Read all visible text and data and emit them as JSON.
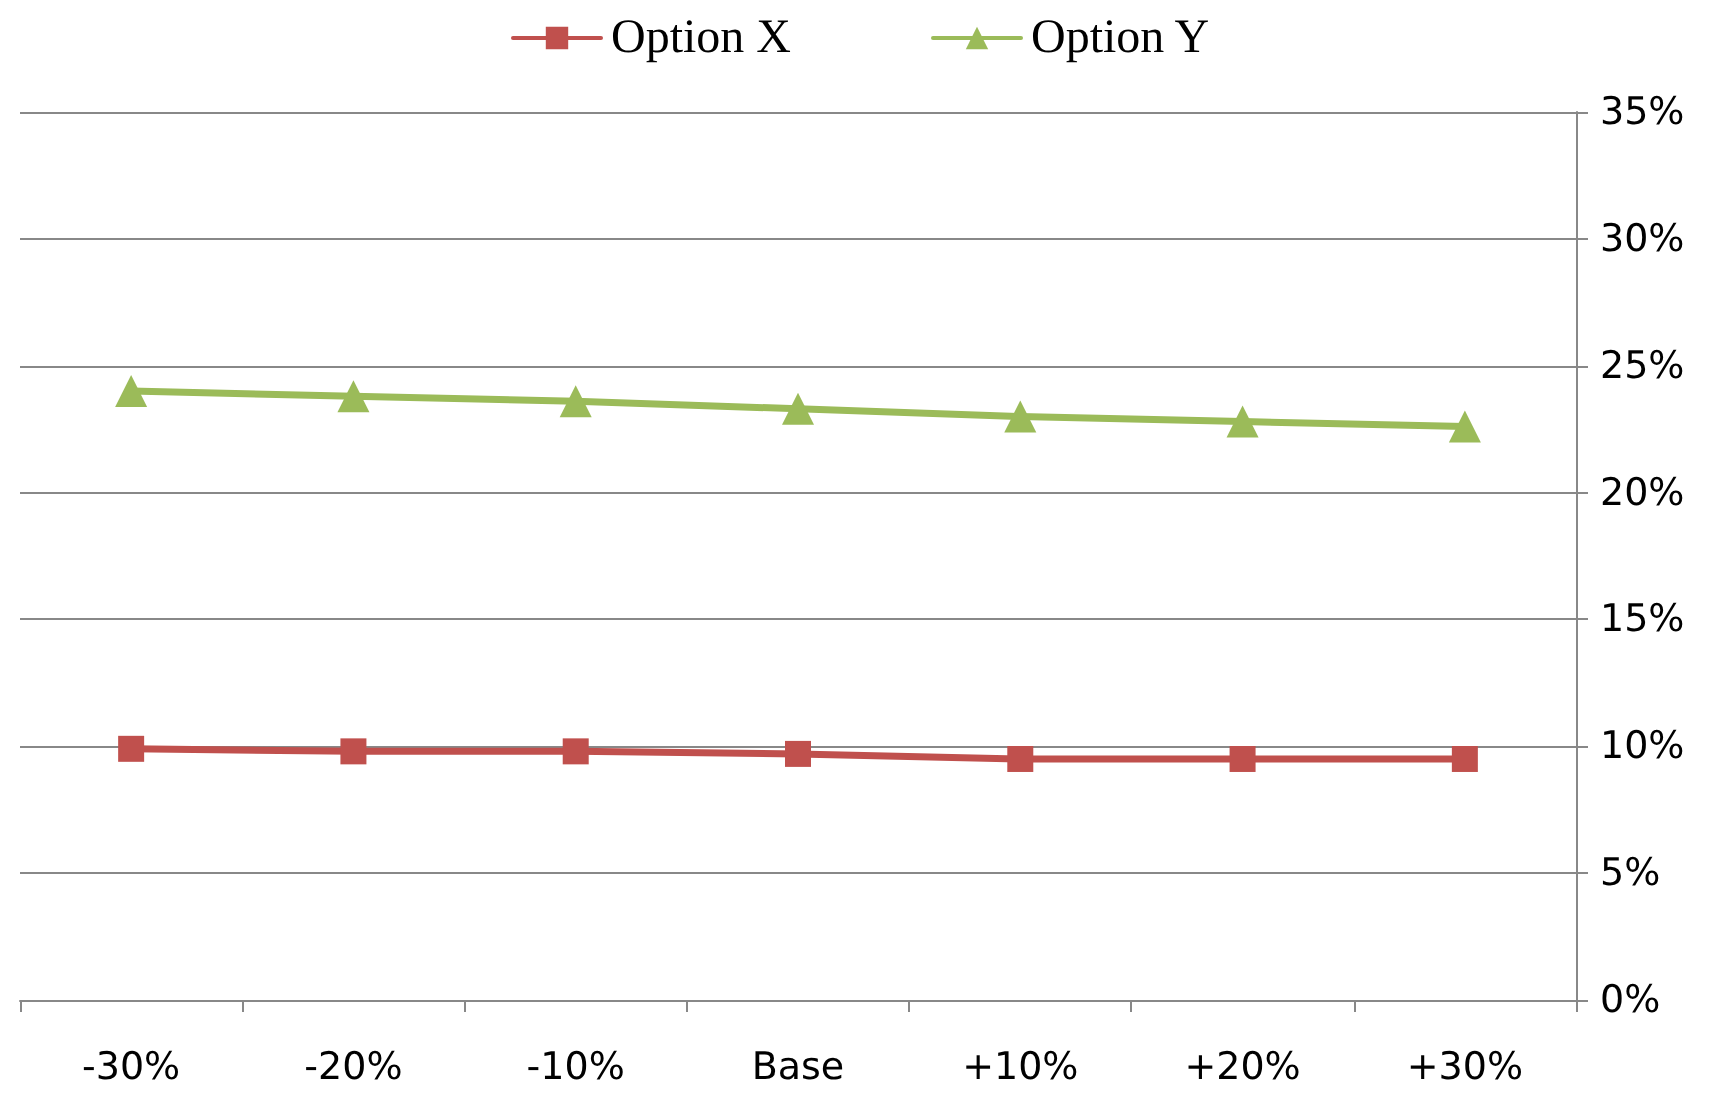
{
  "chart_data": {
    "type": "line",
    "categories": [
      "-30%",
      "-20%",
      "-10%",
      "Base",
      "+10%",
      "+20%",
      "+30%"
    ],
    "series": [
      {
        "name": "Option X",
        "color": "#c0504d",
        "marker": "square",
        "values": [
          9.9,
          9.8,
          9.8,
          9.7,
          9.5,
          9.5,
          9.5
        ]
      },
      {
        "name": "Option Y",
        "color": "#9bbb59",
        "marker": "triangle",
        "values": [
          24.0,
          23.8,
          23.6,
          23.3,
          23.0,
          22.8,
          22.6
        ]
      }
    ],
    "ylim": [
      0,
      35
    ],
    "yticks": [
      {
        "value": 0,
        "label": "0%"
      },
      {
        "value": 5,
        "label": "5%"
      },
      {
        "value": 10,
        "label": "10%"
      },
      {
        "value": 15,
        "label": "15%"
      },
      {
        "value": 20,
        "label": "20%"
      },
      {
        "value": 25,
        "label": "25%"
      },
      {
        "value": 30,
        "label": "30%"
      },
      {
        "value": 35,
        "label": "35%"
      }
    ],
    "grid": "y",
    "legend": "top",
    "line_style": "solid"
  }
}
